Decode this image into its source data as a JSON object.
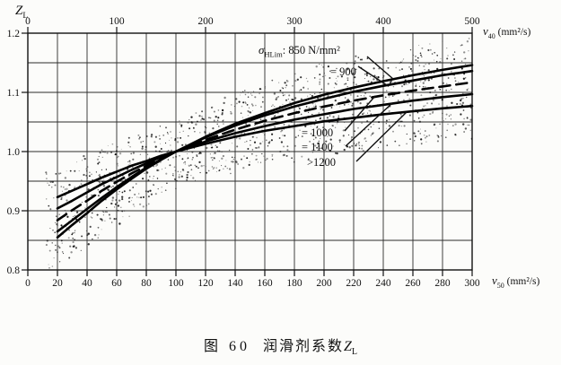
{
  "figure": {
    "caption": {
      "fig_label": "图 60",
      "text": "润滑剂系数",
      "symbol": "Z",
      "symbol_sub": "L"
    }
  },
  "chart": {
    "y_axis": {
      "symbol": "Z",
      "symbol_sub": "L",
      "tick_labels": [
        "1.2",
        "1.1",
        "1.0",
        "0.9",
        "0.8"
      ]
    },
    "top_axis": {
      "symbol": "ν",
      "symbol_sub": "40",
      "unit": "(mm²/s)",
      "tick_labels": [
        "0",
        "100",
        "200",
        "300",
        "400",
        "500"
      ]
    },
    "bottom_axis": {
      "symbol": "ν",
      "symbol_sub": "50",
      "unit": "(mm²/s)",
      "tick_labels": [
        "0",
        "20",
        "40",
        "60",
        "80",
        "100",
        "120",
        "140",
        "160",
        "180",
        "200",
        "220",
        "240",
        "260",
        "280",
        "300"
      ]
    },
    "annotations": {
      "sigma_symbol": "σ",
      "sigma_sub": "HLim",
      "sigma_rest": ": 850 N/mm²",
      "curve_labels": [
        "= 900",
        "= 1000",
        "= 1100",
        ">1200"
      ]
    },
    "ink_color": "#111111",
    "grid_color": "#2b2b2b",
    "paper_color": "#fcfcfa"
  },
  "chart_data": {
    "type": "line",
    "title": "润滑剂系数 ZL (lubricant factor)",
    "xlabel_bottom": "ν50 (mm²/s)",
    "xlabel_top": "ν40 (mm²/s)",
    "ylabel": "ZL",
    "xlim": [
      0,
      300
    ],
    "xlim_top": [
      0,
      500
    ],
    "ylim": [
      0.8,
      1.2
    ],
    "y_grid_step": 0.05,
    "x_grid_step": 20,
    "grid": true,
    "legend_position": "inline-annotations",
    "band_note": "stippled scatter band surrounding the curve family, ±0.05 around envelope",
    "x": [
      20,
      30,
      40,
      50,
      60,
      70,
      80,
      90,
      100,
      120,
      140,
      160,
      180,
      200,
      220,
      240,
      260,
      280,
      300
    ],
    "series": [
      {
        "name": "σHLim = 850 N/mm²",
        "style": "solid",
        "values": [
          0.855,
          0.876,
          0.896,
          0.917,
          0.936,
          0.954,
          0.971,
          0.986,
          1.0,
          1.025,
          1.047,
          1.065,
          1.082,
          1.096,
          1.108,
          1.119,
          1.129,
          1.138,
          1.146
        ]
      },
      {
        "name": "σHLim = 900",
        "style": "solid",
        "values": [
          0.865,
          0.884,
          0.903,
          0.922,
          0.94,
          0.957,
          0.973,
          0.987,
          1.0,
          1.024,
          1.044,
          1.061,
          1.076,
          1.089,
          1.101,
          1.111,
          1.12,
          1.129,
          1.136
        ]
      },
      {
        "name": "σHLim = 1000",
        "style": "dashed",
        "values": [
          0.884,
          0.901,
          0.917,
          0.934,
          0.949,
          0.963,
          0.976,
          0.989,
          1.0,
          1.02,
          1.037,
          1.052,
          1.065,
          1.076,
          1.086,
          1.095,
          1.103,
          1.11,
          1.117
        ]
      },
      {
        "name": "σHLim = 1100",
        "style": "solid",
        "values": [
          0.904,
          0.917,
          0.931,
          0.945,
          0.957,
          0.969,
          0.98,
          0.991,
          1.0,
          1.017,
          1.031,
          1.043,
          1.054,
          1.063,
          1.072,
          1.079,
          1.086,
          1.092,
          1.097
        ]
      },
      {
        "name": "σHLim ≥ 1200",
        "style": "solid",
        "values": [
          0.923,
          0.934,
          0.945,
          0.956,
          0.966,
          0.976,
          0.984,
          0.993,
          1.0,
          1.013,
          1.025,
          1.035,
          1.043,
          1.051,
          1.057,
          1.063,
          1.068,
          1.073,
          1.077
        ]
      }
    ]
  }
}
